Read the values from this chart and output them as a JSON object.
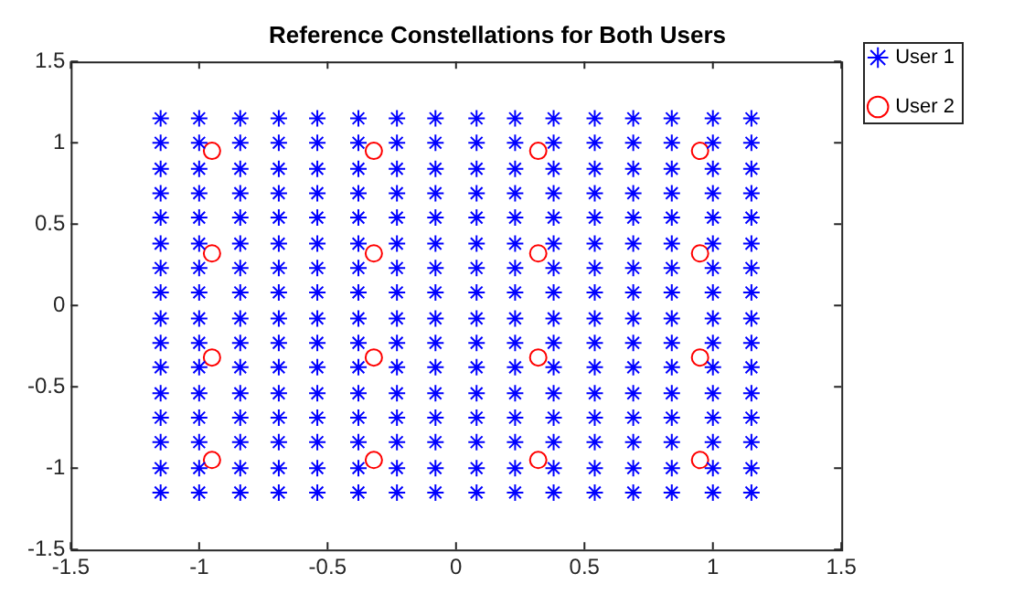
{
  "chart_data": {
    "type": "scatter",
    "title": "Reference Constellations for Both Users",
    "xlim": [
      -1.5,
      1.5
    ],
    "ylim": [
      -1.5,
      1.5
    ],
    "xticks": [
      -1.5,
      -1,
      -0.5,
      0,
      0.5,
      1,
      1.5
    ],
    "yticks": [
      -1.5,
      -1,
      -0.5,
      0,
      0.5,
      1,
      1.5
    ],
    "grid": false,
    "legend": "top right",
    "series": [
      {
        "name": "User 1",
        "color": "#0000ff",
        "marker": "cross",
        "x": [
          -1.15,
          -1.15,
          -1.15,
          -1.15,
          -1.15,
          -1.15,
          -1.15,
          -1.15,
          -1.15,
          -1.15,
          -1.15,
          -1.15,
          -1.15,
          -1.15,
          -1.15,
          -1.15,
          -1,
          -1,
          -1,
          -1,
          -1,
          -1,
          -1,
          -1,
          -1,
          -1,
          -1,
          -1,
          -1,
          -1,
          -1,
          -1,
          -0.84,
          -0.84,
          -0.84,
          -0.84,
          -0.84,
          -0.84,
          -0.84,
          -0.84,
          -0.84,
          -0.84,
          -0.84,
          -0.84,
          -0.84,
          -0.84,
          -0.84,
          -0.84,
          -0.69,
          -0.69,
          -0.69,
          -0.69,
          -0.69,
          -0.69,
          -0.69,
          -0.69,
          -0.69,
          -0.69,
          -0.69,
          -0.69,
          -0.69,
          -0.69,
          -0.69,
          -0.69,
          -0.54,
          -0.54,
          -0.54,
          -0.54,
          -0.54,
          -0.54,
          -0.54,
          -0.54,
          -0.54,
          -0.54,
          -0.54,
          -0.54,
          -0.54,
          -0.54,
          -0.54,
          -0.54,
          -0.38,
          -0.38,
          -0.38,
          -0.38,
          -0.38,
          -0.38,
          -0.38,
          -0.38,
          -0.38,
          -0.38,
          -0.38,
          -0.38,
          -0.38,
          -0.38,
          -0.38,
          -0.38,
          -0.23,
          -0.23,
          -0.23,
          -0.23,
          -0.23,
          -0.23,
          -0.23,
          -0.23,
          -0.23,
          -0.23,
          -0.23,
          -0.23,
          -0.23,
          -0.23,
          -0.23,
          -0.23,
          -0.08,
          -0.08,
          -0.08,
          -0.08,
          -0.08,
          -0.08,
          -0.08,
          -0.08,
          -0.08,
          -0.08,
          -0.08,
          -0.08,
          -0.08,
          -0.08,
          -0.08,
          -0.08,
          0.08,
          0.08,
          0.08,
          0.08,
          0.08,
          0.08,
          0.08,
          0.08,
          0.08,
          0.08,
          0.08,
          0.08,
          0.08,
          0.08,
          0.08,
          0.08,
          0.23,
          0.23,
          0.23,
          0.23,
          0.23,
          0.23,
          0.23,
          0.23,
          0.23,
          0.23,
          0.23,
          0.23,
          0.23,
          0.23,
          0.23,
          0.23,
          0.38,
          0.38,
          0.38,
          0.38,
          0.38,
          0.38,
          0.38,
          0.38,
          0.38,
          0.38,
          0.38,
          0.38,
          0.38,
          0.38,
          0.38,
          0.38,
          0.54,
          0.54,
          0.54,
          0.54,
          0.54,
          0.54,
          0.54,
          0.54,
          0.54,
          0.54,
          0.54,
          0.54,
          0.54,
          0.54,
          0.54,
          0.54,
          0.69,
          0.69,
          0.69,
          0.69,
          0.69,
          0.69,
          0.69,
          0.69,
          0.69,
          0.69,
          0.69,
          0.69,
          0.69,
          0.69,
          0.69,
          0.69,
          0.84,
          0.84,
          0.84,
          0.84,
          0.84,
          0.84,
          0.84,
          0.84,
          0.84,
          0.84,
          0.84,
          0.84,
          0.84,
          0.84,
          0.84,
          0.84,
          1,
          1,
          1,
          1,
          1,
          1,
          1,
          1,
          1,
          1,
          1,
          1,
          1,
          1,
          1,
          1,
          1.15,
          1.15,
          1.15,
          1.15,
          1.15,
          1.15,
          1.15,
          1.15,
          1.15,
          1.15,
          1.15,
          1.15,
          1.15,
          1.15,
          1.15,
          1.15
        ],
        "values": [
          -1.15,
          -1,
          -0.84,
          -0.69,
          -0.54,
          -0.38,
          -0.23,
          -0.08,
          0.08,
          0.23,
          0.38,
          0.54,
          0.69,
          0.84,
          1,
          1.15,
          -1.15,
          -1,
          -0.84,
          -0.69,
          -0.54,
          -0.38,
          -0.23,
          -0.08,
          0.08,
          0.23,
          0.38,
          0.54,
          0.69,
          0.84,
          1,
          1.15,
          -1.15,
          -1,
          -0.84,
          -0.69,
          -0.54,
          -0.38,
          -0.23,
          -0.08,
          0.08,
          0.23,
          0.38,
          0.54,
          0.69,
          0.84,
          1,
          1.15,
          -1.15,
          -1,
          -0.84,
          -0.69,
          -0.54,
          -0.38,
          -0.23,
          -0.08,
          0.08,
          0.23,
          0.38,
          0.54,
          0.69,
          0.84,
          1,
          1.15,
          -1.15,
          -1,
          -0.84,
          -0.69,
          -0.54,
          -0.38,
          -0.23,
          -0.08,
          0.08,
          0.23,
          0.38,
          0.54,
          0.69,
          0.84,
          1,
          1.15,
          -1.15,
          -1,
          -0.84,
          -0.69,
          -0.54,
          -0.38,
          -0.23,
          -0.08,
          0.08,
          0.23,
          0.38,
          0.54,
          0.69,
          0.84,
          1,
          1.15,
          -1.15,
          -1,
          -0.84,
          -0.69,
          -0.54,
          -0.38,
          -0.23,
          -0.08,
          0.08,
          0.23,
          0.38,
          0.54,
          0.69,
          0.84,
          1,
          1.15,
          -1.15,
          -1,
          -0.84,
          -0.69,
          -0.54,
          -0.38,
          -0.23,
          -0.08,
          0.08,
          0.23,
          0.38,
          0.54,
          0.69,
          0.84,
          1,
          1.15,
          -1.15,
          -1,
          -0.84,
          -0.69,
          -0.54,
          -0.38,
          -0.23,
          -0.08,
          0.08,
          0.23,
          0.38,
          0.54,
          0.69,
          0.84,
          1,
          1.15,
          -1.15,
          -1,
          -0.84,
          -0.69,
          -0.54,
          -0.38,
          -0.23,
          -0.08,
          0.08,
          0.23,
          0.38,
          0.54,
          0.69,
          0.84,
          1,
          1.15,
          -1.15,
          -1,
          -0.84,
          -0.69,
          -0.54,
          -0.38,
          -0.23,
          -0.08,
          0.08,
          0.23,
          0.38,
          0.54,
          0.69,
          0.84,
          1,
          1.15,
          -1.15,
          -1,
          -0.84,
          -0.69,
          -0.54,
          -0.38,
          -0.23,
          -0.08,
          0.08,
          0.23,
          0.38,
          0.54,
          0.69,
          0.84,
          1,
          1.15,
          -1.15,
          -1,
          -0.84,
          -0.69,
          -0.54,
          -0.38,
          -0.23,
          -0.08,
          0.08,
          0.23,
          0.38,
          0.54,
          0.69,
          0.84,
          1,
          1.15,
          -1.15,
          -1,
          -0.84,
          -0.69,
          -0.54,
          -0.38,
          -0.23,
          -0.08,
          0.08,
          0.23,
          0.38,
          0.54,
          0.69,
          0.84,
          1,
          1.15,
          -1.15,
          -1,
          -0.84,
          -0.69,
          -0.54,
          -0.38,
          -0.23,
          -0.08,
          0.08,
          0.23,
          0.38,
          0.54,
          0.69,
          0.84,
          1,
          1.15,
          -1.15,
          -1,
          -0.84,
          -0.69,
          -0.54,
          -0.38,
          -0.23,
          -0.08,
          0.08,
          0.23,
          0.38,
          0.54,
          0.69,
          0.84,
          1,
          1.15
        ]
      },
      {
        "name": "User 2",
        "color": "#ff0000",
        "marker": "circle",
        "x": [
          -0.95,
          -0.95,
          -0.95,
          -0.95,
          -0.32,
          -0.32,
          -0.32,
          -0.32,
          0.32,
          0.32,
          0.32,
          0.32,
          0.95,
          0.95,
          0.95,
          0.95
        ],
        "values": [
          -0.95,
          -0.32,
          0.32,
          0.95,
          -0.95,
          -0.32,
          0.32,
          0.95,
          -0.95,
          -0.32,
          0.32,
          0.95,
          -0.95,
          -0.32,
          0.32,
          0.95
        ]
      }
    ]
  }
}
